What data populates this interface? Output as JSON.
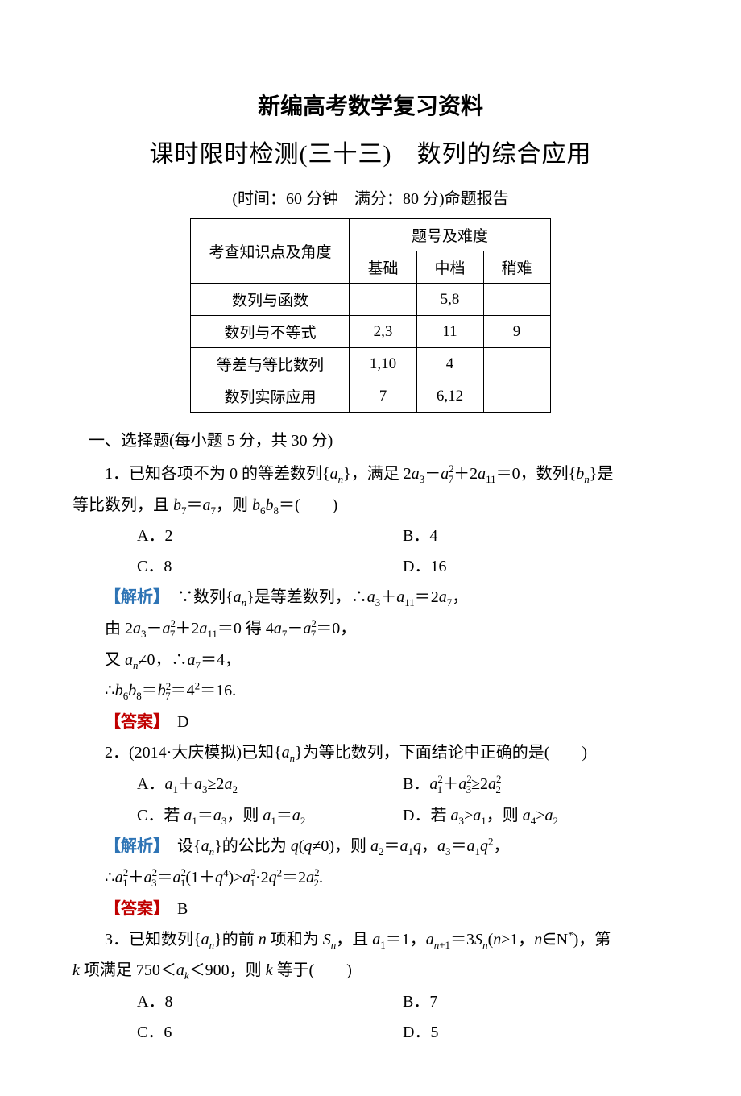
{
  "title": "新编高考数学复习资料",
  "subtitle_a": "课时",
  "subtitle_b": "限时",
  "subtitle_c": "检测(三十三)　数列的综合应用",
  "timeinfo": "(时间：60 分钟　满分：80 分)命题报告",
  "table": {
    "header_main": "考查知识点及角度",
    "header_group": "题号及难度",
    "cols": [
      "基础",
      "中档",
      "稍难"
    ],
    "rows": [
      {
        "label": "数列与函数",
        "cells": [
          "",
          "5,8",
          ""
        ]
      },
      {
        "label": "数列与不等式",
        "cells": [
          "2,3",
          "11",
          "9"
        ]
      },
      {
        "label": "等差与等比数列",
        "cells": [
          "1,10",
          "4",
          ""
        ]
      },
      {
        "label": "数列实际应用",
        "cells": [
          "7",
          "6,12",
          ""
        ]
      }
    ]
  },
  "section1": "一、选择题(每小题 5 分，共 30 分)",
  "q1": {
    "line1a": "1．已知各项不为 0 的等差数列{",
    "line1b": "}，满足 2",
    "line1c": "－",
    "line1d": "＋2",
    "line1e": "＝0，数列{",
    "line1f": "}是",
    "line2a": "等比数列，且 ",
    "line2b": "＝",
    "line2c": "，则 ",
    "line2d": "＝(　　)",
    "opts": {
      "A": "A．2",
      "B": "B．4",
      "C": "C．8",
      "D": "D．16"
    },
    "ana_label": "解析",
    "ana1a": "　∵数列{",
    "ana1b": "}是等差数列，∴",
    "ana1c": "＋",
    "ana1d": "＝2",
    "ana1e": "，",
    "ana2a": "由 2",
    "ana2b": "－",
    "ana2c": "＋2",
    "ana2d": "＝0 得 4",
    "ana2e": "－",
    "ana2f": "＝0，",
    "ana3a": "又 ",
    "ana3b": "≠0，∴",
    "ana3c": "＝4，",
    "ana4a": "∴",
    "ana4b": "＝",
    "ana4c": "＝4",
    "ana4d": "＝16.",
    "ans_label": "答案",
    "ans": "　D"
  },
  "q2": {
    "stem_a": "2．(2014·大庆模拟)已知{",
    "stem_b": "}为等比数列，下面结论中正确的是(　　)",
    "optA_a": "A．",
    "optA_b": "＋",
    "optA_c": "≥2",
    "optB_a": "B．",
    "optB_b": "＋",
    "optB_c": "≥2",
    "optC_a": "C．若 ",
    "optC_b": "＝",
    "optC_c": "，则 ",
    "optC_d": "＝",
    "optD_a": "D．若 ",
    "optD_b": ">",
    "optD_c": "，则 ",
    "optD_d": ">",
    "ana_label": "解析",
    "ana1a": "　设{",
    "ana1b": "}的公比为 ",
    "ana1c": "(",
    "ana1d": "≠0)，则 ",
    "ana1e": "＝",
    "ana1f": "，",
    "ana1g": "＝",
    "ana1h": "，",
    "ana2a": "∴",
    "ana2b": "＋",
    "ana2c": "＝",
    "ana2d": "(1＋",
    "ana2e": ")≥",
    "ana2f": "·2",
    "ana2g": "＝2",
    "ana2h": ".",
    "ans_label": "答案",
    "ans": "　B"
  },
  "q3": {
    "line1a": "3．已知数列{",
    "line1b": "}的前 ",
    "line1c": " 项和为 ",
    "line1d": "，且 ",
    "line1e": "＝1，",
    "line1f": "＝3",
    "line1g": "(",
    "line1h": "≥1，",
    "line1i": "∈N",
    "line1j": ")，第",
    "line2a": " 项满足 750＜",
    "line2b": "＜900，则 ",
    "line2c": " 等于(　　)",
    "opts": {
      "A": "A．8",
      "B": "B．7",
      "C": "C．6",
      "D": "D．5"
    }
  },
  "colors": {
    "text": "#000000",
    "analysis": "#2e74b5",
    "answer": "#c00000",
    "background": "#ffffff",
    "border": "#000000"
  },
  "fonts": {
    "title_family": "SimHei",
    "body_family": "SimSun",
    "math_family": "Times New Roman",
    "title_size_pt": 21,
    "subtitle_size_pt": 22,
    "body_size_pt": 15
  }
}
